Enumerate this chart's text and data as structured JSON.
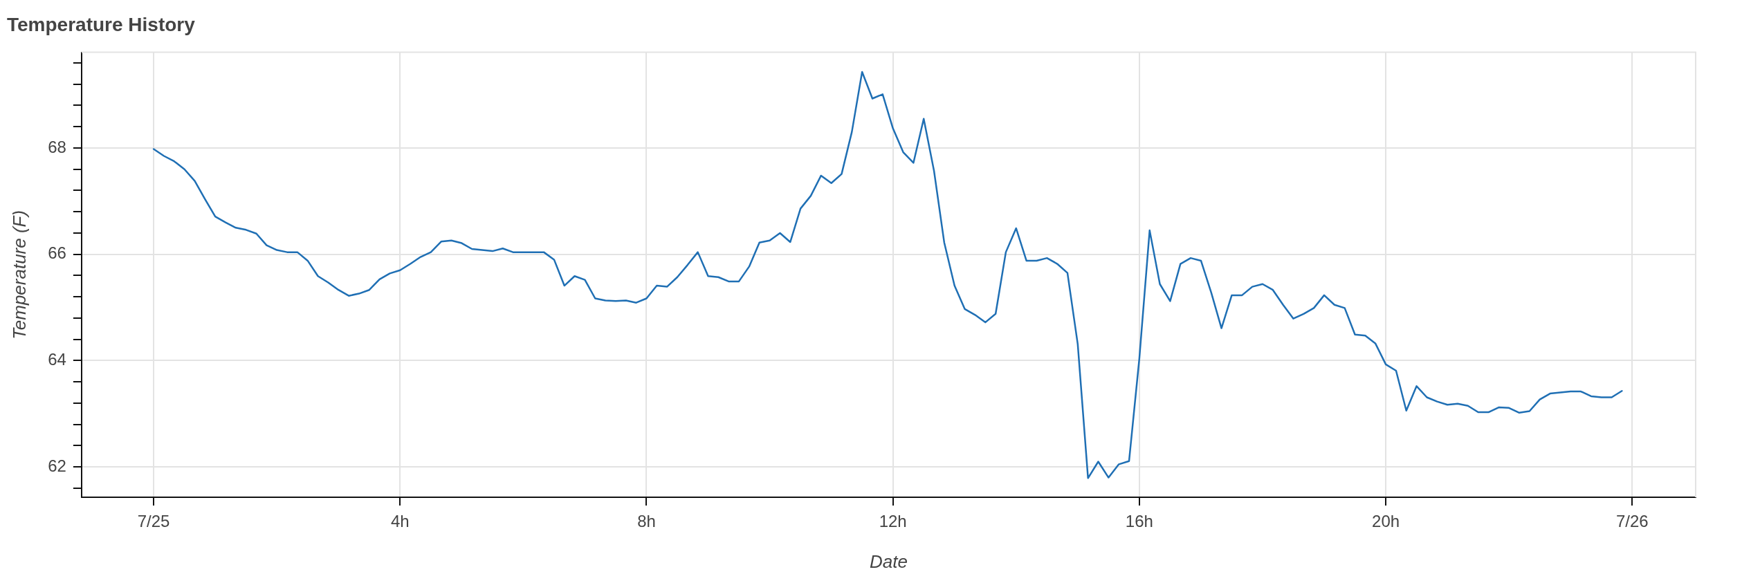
{
  "chart_data": {
    "type": "line",
    "title": "Temperature History",
    "xlabel": "Date",
    "ylabel": "Temperature (F)",
    "x": [
      0,
      0.167,
      0.333,
      0.5,
      0.667,
      0.833,
      1,
      1.167,
      1.333,
      1.5,
      1.667,
      1.833,
      2,
      2.167,
      2.333,
      2.5,
      2.667,
      2.833,
      3,
      3.167,
      3.333,
      3.5,
      3.667,
      3.833,
      4,
      4.167,
      4.333,
      4.5,
      4.667,
      4.833,
      5,
      5.167,
      5.333,
      5.5,
      5.667,
      5.833,
      6,
      6.167,
      6.333,
      6.5,
      6.667,
      6.833,
      7,
      7.167,
      7.333,
      7.5,
      7.667,
      7.833,
      8,
      8.167,
      8.333,
      8.5,
      8.667,
      8.833,
      9,
      9.167,
      9.333,
      9.5,
      9.667,
      9.833,
      10,
      10.167,
      10.333,
      10.5,
      10.667,
      10.833,
      11,
      11.167,
      11.333,
      11.5,
      11.667,
      11.833,
      12,
      12.167,
      12.333,
      12.5,
      12.667,
      12.833,
      13,
      13.167,
      13.333,
      13.5,
      13.667,
      13.833,
      14,
      14.167,
      14.333,
      14.5,
      14.667,
      14.833,
      15,
      15.167,
      15.333,
      15.5,
      15.667,
      15.833,
      16,
      16.167,
      16.333,
      16.5,
      16.667,
      16.833,
      17,
      17.167,
      17.333,
      17.5,
      17.667,
      17.833,
      18,
      18.167,
      18.333,
      18.5,
      18.667,
      18.833,
      19,
      19.167,
      19.333,
      19.5,
      19.667,
      19.833,
      20,
      20.167,
      20.333,
      20.5,
      20.667,
      20.833,
      21,
      21.167,
      21.333,
      21.5,
      21.667,
      21.833,
      22,
      22.167,
      22.333,
      22.5,
      22.667,
      22.833,
      23,
      23.167,
      23.333,
      23.5,
      23.667,
      23.833
    ],
    "series": [
      {
        "color": "#1f6fb4",
        "values": [
          67.98,
          67.85,
          67.75,
          67.6,
          67.38,
          67.04,
          66.71,
          66.6,
          66.5,
          66.46,
          66.39,
          66.17,
          66.08,
          66.04,
          66.04,
          65.88,
          65.59,
          65.47,
          65.33,
          65.22,
          65.26,
          65.33,
          65.53,
          65.64,
          65.7,
          65.82,
          65.95,
          66.04,
          66.24,
          66.26,
          66.21,
          66.1,
          66.08,
          66.06,
          66.11,
          66.04,
          66.04,
          66.04,
          66.04,
          65.9,
          65.41,
          65.59,
          65.52,
          65.17,
          65.13,
          65.12,
          65.13,
          65.09,
          65.17,
          65.41,
          65.39,
          65.57,
          65.8,
          66.04,
          65.59,
          65.57,
          65.49,
          65.49,
          65.77,
          66.22,
          66.26,
          66.4,
          66.23,
          66.86,
          67.1,
          67.48,
          67.34,
          67.51,
          68.3,
          69.43,
          68.93,
          69.01,
          68.37,
          67.92,
          67.72,
          68.55,
          67.57,
          66.22,
          65.41,
          64.97,
          64.86,
          64.72,
          64.88,
          66.04,
          66.49,
          65.88,
          65.88,
          65.93,
          65.82,
          65.65,
          64.31,
          61.79,
          62.1,
          61.8,
          62.05,
          62.11,
          64.04,
          66.45,
          65.44,
          65.12,
          65.82,
          65.93,
          65.88,
          65.28,
          64.61,
          65.23,
          65.23,
          65.39,
          65.44,
          65.33,
          65.05,
          64.79,
          64.88,
          64.99,
          65.23,
          65.05,
          64.99,
          64.49,
          64.47,
          64.32,
          63.93,
          63.81,
          63.06,
          63.52,
          63.31,
          63.23,
          63.17,
          63.19,
          63.15,
          63.03,
          63.03,
          63.12,
          63.11,
          63.02,
          63.05,
          63.27,
          63.38,
          63.4,
          63.42,
          63.42,
          63.33,
          63.31,
          63.31,
          63.43
        ]
      }
    ],
    "xlim": [
      -1.17,
      25.03
    ],
    "xticks": [
      {
        "value": 0,
        "label": "7/25"
      },
      {
        "value": 4,
        "label": "4h"
      },
      {
        "value": 8,
        "label": "8h"
      },
      {
        "value": 12,
        "label": "12h"
      },
      {
        "value": 16,
        "label": "16h"
      },
      {
        "value": 20,
        "label": "20h"
      },
      {
        "value": 24,
        "label": "7/26"
      }
    ],
    "ylim": [
      61.43,
      69.8
    ],
    "yticks": [
      {
        "value": 61.6,
        "label": null
      },
      62,
      {
        "value": 62.4,
        "label": null
      },
      {
        "value": 62.8,
        "label": null
      },
      {
        "value": 63.2,
        "label": null
      },
      {
        "value": 63.6,
        "label": null
      },
      64,
      {
        "value": 64.4,
        "label": null
      },
      {
        "value": 64.8,
        "label": null
      },
      {
        "value": 65.2,
        "label": null
      },
      {
        "value": 65.6,
        "label": null
      },
      66,
      {
        "value": 66.4,
        "label": null
      },
      {
        "value": 66.8,
        "label": null
      },
      {
        "value": 67.2,
        "label": null
      },
      {
        "value": 67.6,
        "label": null
      },
      68,
      {
        "value": 68.4,
        "label": null
      },
      {
        "value": 68.8,
        "label": null
      },
      {
        "value": 69.2,
        "label": null
      },
      {
        "value": 69.6,
        "label": null
      }
    ],
    "grid": true,
    "legend": false,
    "marker": "none",
    "line_style": "solid"
  }
}
